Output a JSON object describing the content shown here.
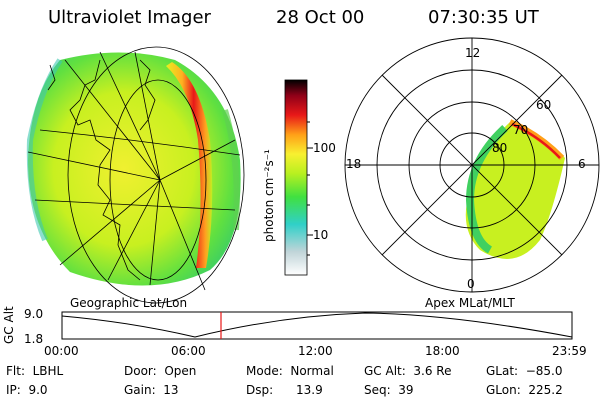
{
  "header": {
    "title": "Ultraviolet Imager",
    "date": "28 Oct 00",
    "time": "07:30:35 UT"
  },
  "colorbar": {
    "label": "photon cm⁻²s⁻¹",
    "ticks": [
      "100",
      "10"
    ]
  },
  "polar_plot": {
    "hour_labels": [
      "12",
      "18",
      "6",
      "0"
    ],
    "lat_labels": [
      "60",
      "70",
      "80"
    ]
  },
  "panel_labels": {
    "left": "Geographic Lat/Lon",
    "right": "Apex MLat/MLT"
  },
  "altitude_plot": {
    "ylabel": "GC Alt",
    "yticks": [
      "9.0",
      "1.8"
    ],
    "xticks": [
      "00:00",
      "06:00",
      "12:00",
      "18:00",
      "23:59"
    ],
    "current_time_marker": "07:30"
  },
  "info": {
    "flt": "Flt:  LBHL",
    "ip": "IP:  9.0",
    "door": "Door:  Open",
    "gain": "Gain:  13",
    "mode": "Mode:  Normal",
    "dsp": "Dsp:      13.9",
    "gcalt": "GC Alt:  3.6 Re",
    "seq": "Seq:  39",
    "glat": "GLat:  −85.0",
    "glon": "GLon:  225.2"
  },
  "colors": {
    "scale": [
      "#ffffff",
      "#c8d8d8",
      "#3fd0c8",
      "#58e040",
      "#b8f020",
      "#f0f030",
      "#ffb020",
      "#e81818",
      "#980018",
      "#000000"
    ]
  }
}
